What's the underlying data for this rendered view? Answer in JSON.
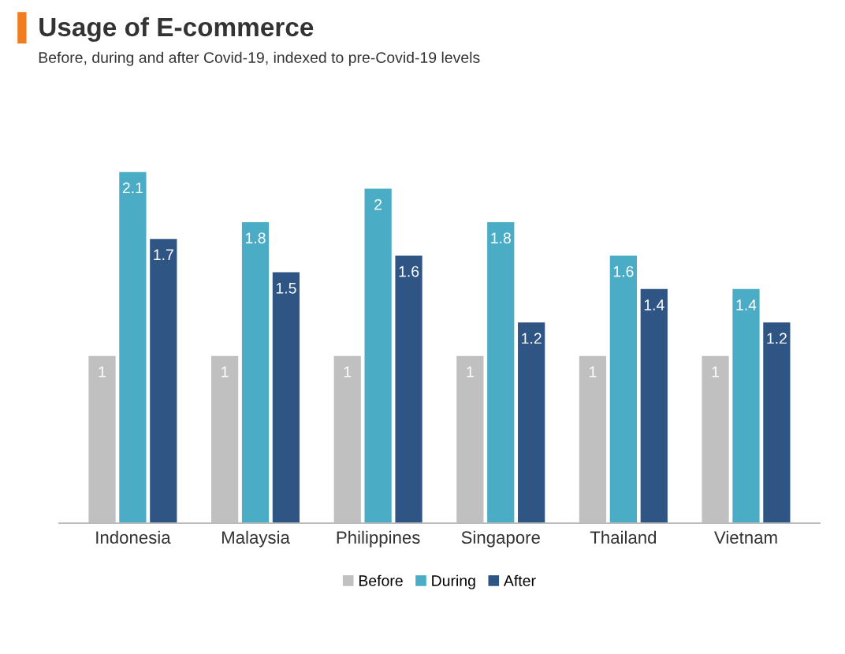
{
  "chart_data": {
    "type": "bar",
    "title": "Usage of E-commerce",
    "subtitle": "Before, during and after Covid-19, indexed to pre-Covid-19 levels",
    "categories": [
      "Indonesia",
      "Malaysia",
      "Philippines",
      "Singapore",
      "Thailand",
      "Vietnam"
    ],
    "series": [
      {
        "name": "Before",
        "color": "#c0c0c0",
        "values": [
          1,
          1,
          1,
          1,
          1,
          1
        ]
      },
      {
        "name": "During",
        "color": "#4bacc6",
        "values": [
          2.1,
          1.8,
          2,
          1.8,
          1.6,
          1.4
        ]
      },
      {
        "name": "After",
        "color": "#2f5585",
        "values": [
          1.7,
          1.5,
          1.6,
          1.2,
          1.4,
          1.2
        ]
      }
    ],
    "data_labels": true,
    "legend": "bottom",
    "grid": false
  }
}
